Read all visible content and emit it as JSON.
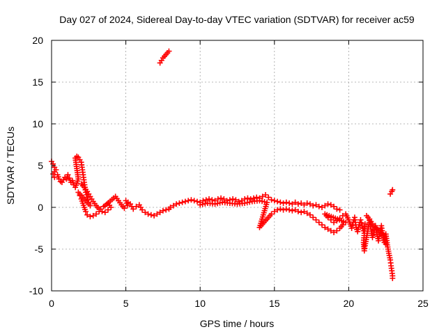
{
  "chart_data": {
    "type": "scatter",
    "title": "Day 027 of 2024, Sidereal Day-to-day VTEC variation (SDTVAR) for receiver ac59",
    "xlabel": "GPS time / hours",
    "ylabel": "SDTVAR / TECUs",
    "xlim": [
      0,
      25
    ],
    "ylim": [
      -10,
      20
    ],
    "xticks": [
      "0",
      "5",
      "10",
      "15",
      "20",
      "25"
    ],
    "yticks": [
      "-10",
      "-5",
      "0",
      "5",
      "10",
      "15",
      "20"
    ],
    "grid": true,
    "marker": "+",
    "series": [
      {
        "name": "SDTVAR",
        "color": "#ff0000",
        "points": [
          [
            0.0,
            5.5
          ],
          [
            0.1,
            5.2
          ],
          [
            0.2,
            4.8
          ],
          [
            0.3,
            4.5
          ],
          [
            0.1,
            4.0
          ],
          [
            0.2,
            3.6
          ],
          [
            0.4,
            3.9
          ],
          [
            0.5,
            3.4
          ],
          [
            0.6,
            3.1
          ],
          [
            0.7,
            3.0
          ],
          [
            0.8,
            3.3
          ],
          [
            0.9,
            3.6
          ],
          [
            1.0,
            3.4
          ],
          [
            1.1,
            3.9
          ],
          [
            1.2,
            3.5
          ],
          [
            1.3,
            3.0
          ],
          [
            1.4,
            3.2
          ],
          [
            1.5,
            2.7
          ],
          [
            1.6,
            2.4
          ],
          [
            1.7,
            2.9
          ],
          [
            1.8,
            3.4
          ],
          [
            1.6,
            5.9
          ],
          [
            1.7,
            6.1
          ],
          [
            1.8,
            6.0
          ],
          [
            1.9,
            5.7
          ],
          [
            2.0,
            5.4
          ],
          [
            2.05,
            4.8
          ],
          [
            2.1,
            4.2
          ],
          [
            2.15,
            3.6
          ],
          [
            2.2,
            3.0
          ],
          [
            2.25,
            2.4
          ],
          [
            2.3,
            1.8
          ],
          [
            2.4,
            1.2
          ],
          [
            2.5,
            0.6
          ],
          [
            2.6,
            0.2
          ],
          [
            1.8,
            1.8
          ],
          [
            1.9,
            1.4
          ],
          [
            2.0,
            1.0
          ],
          [
            2.1,
            0.5
          ],
          [
            2.2,
            0.0
          ],
          [
            2.3,
            -0.5
          ],
          [
            2.4,
            -0.9
          ],
          [
            2.6,
            -1.1
          ],
          [
            2.8,
            -1.0
          ],
          [
            3.0,
            -0.8
          ],
          [
            3.2,
            -0.5
          ],
          [
            3.3,
            -0.2
          ],
          [
            3.5,
            0.1
          ],
          [
            2.0,
            2.8
          ],
          [
            2.2,
            2.4
          ],
          [
            2.4,
            1.9
          ],
          [
            2.6,
            1.3
          ],
          [
            2.8,
            0.7
          ],
          [
            3.0,
            0.2
          ],
          [
            3.2,
            -0.2
          ],
          [
            3.4,
            -0.5
          ],
          [
            3.6,
            -0.6
          ],
          [
            3.8,
            -0.3
          ],
          [
            4.0,
            0.0
          ],
          [
            3.8,
            0.5
          ],
          [
            3.6,
            0.2
          ],
          [
            4.3,
            1.3
          ],
          [
            4.5,
            0.8
          ],
          [
            4.7,
            0.3
          ],
          [
            4.9,
            -0.1
          ],
          [
            5.1,
            0.2
          ],
          [
            5.0,
            0.8
          ],
          [
            5.3,
            0.4
          ],
          [
            5.5,
            -0.2
          ],
          [
            5.7,
            0.1
          ],
          [
            5.9,
            0.3
          ],
          [
            6.1,
            -0.3
          ],
          [
            6.3,
            -0.6
          ],
          [
            6.5,
            -0.8
          ],
          [
            6.7,
            -0.9
          ],
          [
            6.9,
            -1.0
          ],
          [
            7.1,
            -0.8
          ],
          [
            7.3,
            -0.6
          ],
          [
            7.5,
            -0.4
          ],
          [
            7.7,
            -0.3
          ],
          [
            7.9,
            -0.2
          ],
          [
            8.0,
            0.0
          ],
          [
            8.2,
            0.2
          ],
          [
            8.4,
            0.4
          ],
          [
            8.6,
            0.5
          ],
          [
            8.8,
            0.6
          ],
          [
            9.0,
            0.7
          ],
          [
            9.2,
            0.8
          ],
          [
            9.4,
            0.9
          ],
          [
            9.6,
            0.8
          ],
          [
            9.8,
            0.7
          ],
          [
            10.0,
            0.6
          ],
          [
            10.2,
            0.8
          ],
          [
            10.4,
            0.9
          ],
          [
            10.6,
            1.0
          ],
          [
            10.8,
            0.9
          ],
          [
            11.0,
            0.8
          ],
          [
            11.2,
            1.0
          ],
          [
            11.4,
            1.1
          ],
          [
            11.6,
            1.0
          ],
          [
            11.8,
            0.8
          ],
          [
            12.0,
            0.9
          ],
          [
            12.2,
            1.0
          ],
          [
            12.4,
            0.9
          ],
          [
            12.6,
            0.7
          ],
          [
            12.8,
            0.8
          ],
          [
            13.0,
            1.0
          ],
          [
            13.2,
            1.1
          ],
          [
            13.4,
            1.0
          ],
          [
            13.6,
            1.1
          ],
          [
            13.8,
            1.2
          ],
          [
            14.0,
            1.1
          ],
          [
            14.2,
            1.3
          ],
          [
            14.4,
            1.5
          ],
          [
            14.6,
            1.2
          ],
          [
            14.8,
            0.9
          ],
          [
            15.0,
            0.8
          ],
          [
            15.2,
            0.7
          ],
          [
            15.4,
            0.6
          ],
          [
            15.6,
            0.5
          ],
          [
            15.8,
            0.6
          ],
          [
            16.0,
            0.5
          ],
          [
            16.2,
            0.4
          ],
          [
            16.4,
            0.6
          ],
          [
            16.6,
            0.4
          ],
          [
            16.8,
            0.5
          ],
          [
            17.0,
            0.3
          ],
          [
            17.2,
            0.5
          ],
          [
            17.4,
            0.4
          ],
          [
            17.6,
            0.2
          ],
          [
            17.8,
            0.3
          ],
          [
            18.0,
            0.1
          ],
          [
            18.2,
            0.0
          ],
          [
            18.4,
            0.2
          ],
          [
            18.6,
            0.4
          ],
          [
            18.8,
            0.3
          ],
          [
            19.0,
            0.1
          ],
          [
            19.2,
            -0.2
          ],
          [
            19.4,
            -0.3
          ],
          [
            10.0,
            0.3
          ],
          [
            10.5,
            0.5
          ],
          [
            11.0,
            0.4
          ],
          [
            11.5,
            0.6
          ],
          [
            12.0,
            0.5
          ],
          [
            12.5,
            0.4
          ],
          [
            13.0,
            0.5
          ],
          [
            13.5,
            0.7
          ],
          [
            14.0,
            0.8
          ],
          [
            14.5,
            0.6
          ],
          [
            14.0,
            -2.4
          ],
          [
            14.2,
            -2.0
          ],
          [
            14.4,
            -1.6
          ],
          [
            14.6,
            -1.2
          ],
          [
            14.8,
            -0.8
          ],
          [
            15.0,
            -0.5
          ],
          [
            15.2,
            -0.3
          ],
          [
            15.4,
            -0.2
          ],
          [
            15.6,
            -0.3
          ],
          [
            15.8,
            -0.2
          ],
          [
            16.0,
            -0.3
          ],
          [
            16.2,
            -0.4
          ],
          [
            16.4,
            -0.3
          ],
          [
            16.6,
            -0.5
          ],
          [
            16.8,
            -0.6
          ],
          [
            17.0,
            -0.5
          ],
          [
            17.2,
            -0.7
          ],
          [
            17.4,
            -0.9
          ],
          [
            17.6,
            -1.2
          ],
          [
            17.8,
            -1.5
          ],
          [
            18.0,
            -1.8
          ],
          [
            18.2,
            -2.1
          ],
          [
            18.4,
            -2.4
          ],
          [
            18.6,
            -2.6
          ],
          [
            18.8,
            -2.8
          ],
          [
            19.0,
            -3.0
          ],
          [
            19.2,
            -2.8
          ],
          [
            19.4,
            -2.5
          ],
          [
            19.6,
            -2.1
          ],
          [
            19.8,
            -1.8
          ],
          [
            18.4,
            -0.8
          ],
          [
            18.6,
            -1.2
          ],
          [
            18.8,
            -1.5
          ],
          [
            19.0,
            -1.8
          ],
          [
            19.2,
            -1.6
          ],
          [
            19.4,
            -1.3
          ],
          [
            19.6,
            -1.0
          ],
          [
            19.8,
            -0.8
          ],
          [
            20.0,
            -1.5
          ],
          [
            20.1,
            -2.0
          ],
          [
            20.2,
            -2.5
          ],
          [
            20.3,
            -1.8
          ],
          [
            20.4,
            -1.2
          ],
          [
            20.5,
            -2.4
          ],
          [
            20.6,
            -2.9
          ],
          [
            20.7,
            -2.1
          ],
          [
            20.8,
            -1.5
          ],
          [
            20.9,
            -2.2
          ],
          [
            21.0,
            -2.8
          ],
          [
            21.1,
            -2.0
          ],
          [
            21.0,
            -4.2
          ],
          [
            21.05,
            -5.2
          ],
          [
            21.1,
            -4.6
          ],
          [
            21.2,
            -3.6
          ],
          [
            21.3,
            -2.6
          ],
          [
            21.4,
            -1.6
          ],
          [
            21.5,
            -2.6
          ],
          [
            21.6,
            -3.6
          ],
          [
            21.7,
            -3.0
          ],
          [
            21.8,
            -2.2
          ],
          [
            21.9,
            -3.2
          ],
          [
            22.0,
            -4.0
          ],
          [
            22.1,
            -3.0
          ],
          [
            22.2,
            -2.2
          ],
          [
            22.3,
            -3.4
          ],
          [
            22.4,
            -4.2
          ],
          [
            22.5,
            -3.2
          ],
          [
            22.6,
            -4.5
          ],
          [
            22.7,
            -5.5
          ],
          [
            22.8,
            -6.3
          ],
          [
            22.85,
            -7.0
          ],
          [
            22.9,
            -7.6
          ],
          [
            22.95,
            -8.2
          ],
          [
            22.95,
            -8.5
          ],
          [
            21.2,
            -1.0
          ],
          [
            21.4,
            -1.4
          ],
          [
            21.6,
            -2.0
          ],
          [
            21.8,
            -2.4
          ],
          [
            22.0,
            -2.8
          ],
          [
            22.2,
            -3.0
          ],
          [
            22.4,
            -3.6
          ],
          [
            22.5,
            -4.4
          ],
          [
            22.8,
            1.6
          ],
          [
            22.9,
            1.9
          ],
          [
            22.95,
            2.1
          ],
          [
            7.3,
            17.3
          ],
          [
            7.4,
            17.6
          ],
          [
            7.5,
            17.9
          ],
          [
            7.6,
            18.1
          ],
          [
            7.7,
            18.3
          ],
          [
            7.8,
            18.5
          ],
          [
            7.9,
            18.7
          ]
        ]
      }
    ]
  }
}
